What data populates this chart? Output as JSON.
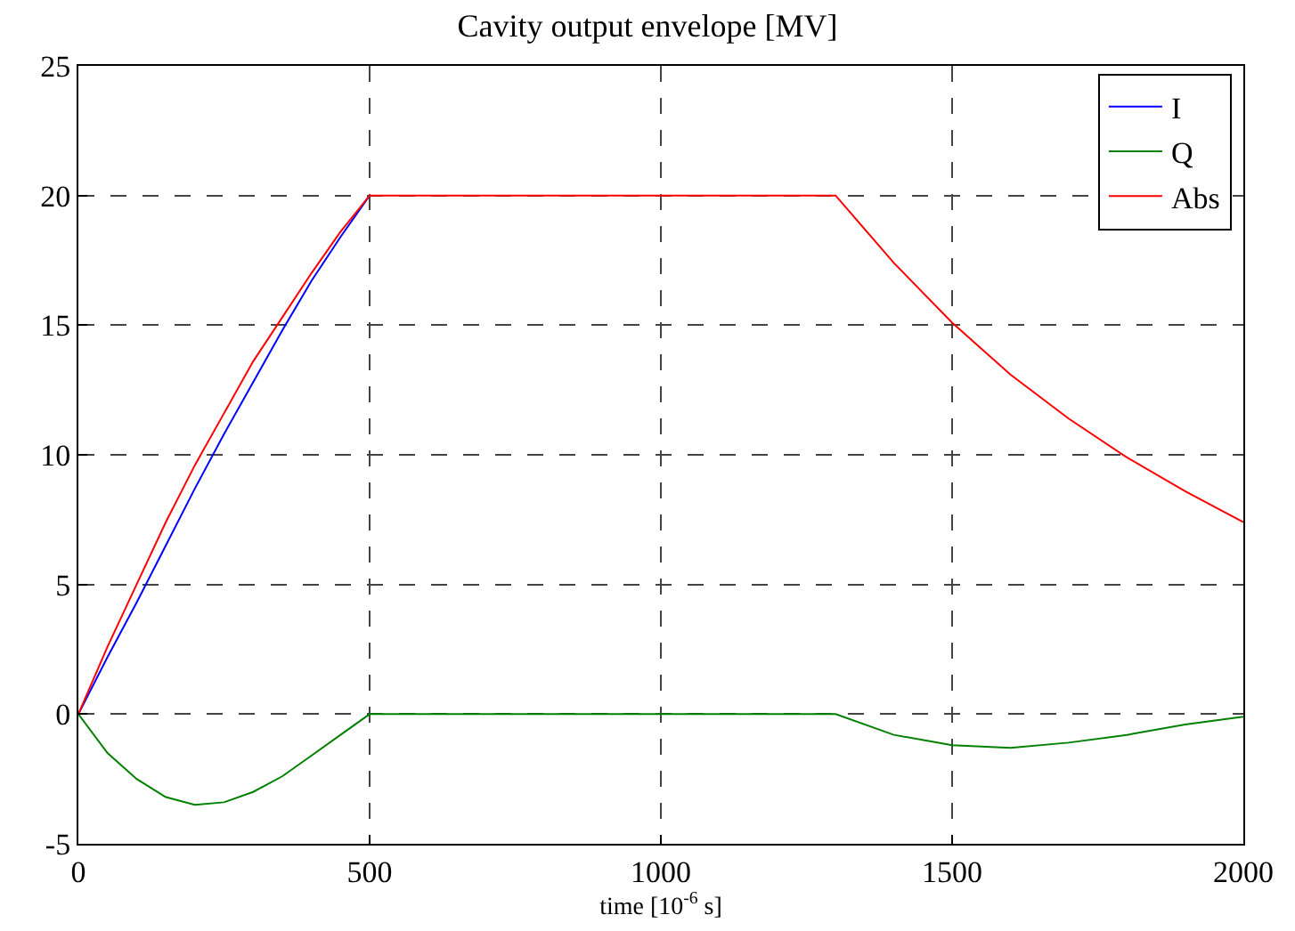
{
  "chart_data": {
    "type": "line",
    "title": "Cavity output envelope [MV]",
    "xlabel": "time [10$^{-6}$ s]",
    "xlim": [
      0,
      2000
    ],
    "ylim": [
      -5,
      25
    ],
    "xticks": [
      0,
      500,
      1000,
      1500,
      2000
    ],
    "yticks": [
      -5,
      0,
      5,
      10,
      15,
      20,
      25
    ],
    "grid": true,
    "legend": "top right",
    "marker": "none",
    "line_style": "solid",
    "series": [
      {
        "name": "I",
        "color": "#0000ff",
        "x": [
          0,
          50,
          100,
          150,
          200,
          250,
          300,
          350,
          400,
          450,
          500
        ],
        "values": [
          0,
          2.2,
          4.3,
          6.5,
          8.7,
          10.8,
          12.8,
          14.8,
          16.7,
          18.4,
          20
        ]
      },
      {
        "name": "Q",
        "color": "#008000",
        "x": [
          0,
          50,
          100,
          150,
          200,
          250,
          300,
          350,
          400,
          450,
          500,
          600,
          700,
          800,
          900,
          1000,
          1100,
          1200,
          1300,
          1400,
          1500,
          1600,
          1700,
          1800,
          1900,
          2000
        ],
        "values": [
          0,
          -1.5,
          -2.5,
          -3.2,
          -3.5,
          -3.4,
          -3.0,
          -2.4,
          -1.6,
          -0.8,
          0,
          0,
          0,
          0,
          0,
          0,
          0,
          0,
          0,
          -0.8,
          -1.2,
          -1.3,
          -1.1,
          -0.8,
          -0.4,
          -0.1
        ]
      },
      {
        "name": "Abs",
        "color": "#ff0000",
        "x": [
          0,
          50,
          100,
          150,
          200,
          250,
          300,
          350,
          400,
          450,
          500,
          600,
          700,
          800,
          900,
          1000,
          1100,
          1200,
          1300,
          1400,
          1500,
          1600,
          1700,
          1800,
          1900,
          2000
        ],
        "values": [
          0,
          2.6,
          5.0,
          7.4,
          9.6,
          11.6,
          13.6,
          15.3,
          17.0,
          18.6,
          20,
          20,
          20,
          20,
          20,
          20,
          20,
          20,
          20,
          17.4,
          15.1,
          13.1,
          11.4,
          9.9,
          8.6,
          7.4
        ]
      }
    ]
  }
}
